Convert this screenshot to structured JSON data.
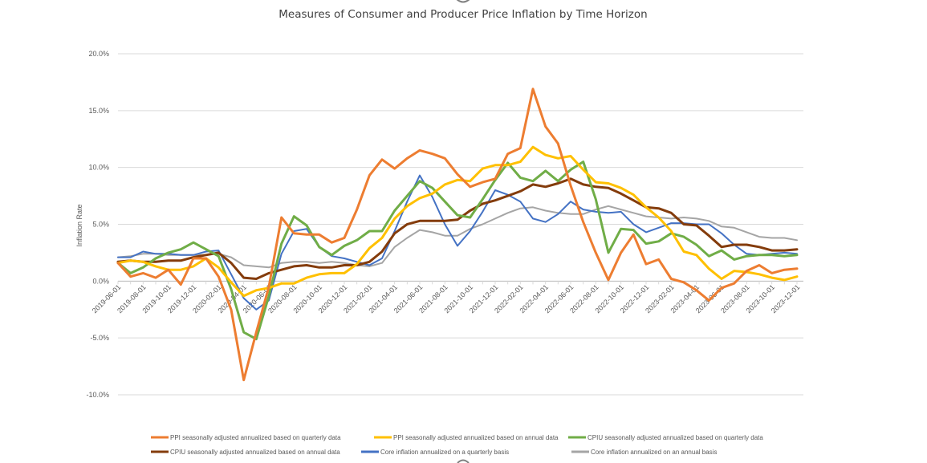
{
  "chart_data": {
    "type": "line",
    "title": "Measures of Consumer and Producer Price Inflation by Time Horizon",
    "xlabel": "",
    "ylabel": "Inflation Rate",
    "ylim": [
      -10,
      20
    ],
    "y_ticks": [
      20,
      15,
      10,
      5,
      0,
      -5,
      -10
    ],
    "y_tick_labels": [
      "20.0%",
      "15.0%",
      "10.0%",
      "5.0%",
      "0.0%",
      "-5.0%",
      "-10.0%"
    ],
    "grid": true,
    "legend_position": "bottom",
    "x": [
      "2019-06-01",
      "2019-07-01",
      "2019-08-01",
      "2019-09-01",
      "2019-10-01",
      "2019-11-01",
      "2019-12-01",
      "2020-01-01",
      "2020-02-01",
      "2020-03-01",
      "2020-04-01",
      "2020-05-01",
      "2020-06-01",
      "2020-07-01",
      "2020-08-01",
      "2020-09-01",
      "2020-10-01",
      "2020-11-01",
      "2020-12-01",
      "2021-01-01",
      "2021-02-01",
      "2021-03-01",
      "2021-04-01",
      "2021-05-01",
      "2021-06-01",
      "2021-07-01",
      "2021-08-01",
      "2021-09-01",
      "2021-10-01",
      "2021-11-01",
      "2021-12-01",
      "2022-01-01",
      "2022-02-01",
      "2022-03-01",
      "2022-04-01",
      "2022-05-01",
      "2022-06-01",
      "2022-07-01",
      "2022-08-01",
      "2022-09-01",
      "2022-10-01",
      "2022-11-01",
      "2022-12-01",
      "2023-01-01",
      "2023-02-01",
      "2023-03-01",
      "2023-04-01",
      "2023-05-01",
      "2023-06-01",
      "2023-07-01",
      "2023-08-01",
      "2023-09-01",
      "2023-10-01",
      "2023-11-01",
      "2023-12-01"
    ],
    "x_tick_labels": [
      "2019-06-01",
      "2019-08-01",
      "2019-10-01",
      "2019-12-01",
      "2020-02-01",
      "2020-04-01",
      "2020-06-01",
      "2020-08-01",
      "2020-10-01",
      "2020-12-01",
      "2021-02-01",
      "2021-04-01",
      "2021-06-01",
      "2021-08-01",
      "2021-10-01",
      "2021-12-01",
      "2022-02-01",
      "2022-04-01",
      "2022-06-01",
      "2022-08-01",
      "2022-10-01",
      "2022-12-01",
      "2023-02-01",
      "2023-04-01",
      "2023-06-01",
      "2023-08-01",
      "2023-10-01",
      "2023-12-01"
    ],
    "series": [
      {
        "name": "PPI seasonally adjusted annualized based on quarterly data",
        "color": "#ED7D31",
        "values": [
          1.6,
          0.4,
          0.7,
          0.3,
          1.0,
          -0.3,
          2.0,
          2.0,
          0.4,
          -2.5,
          -8.7,
          -4.5,
          -0.5,
          5.6,
          4.2,
          4.1,
          4.1,
          3.4,
          3.8,
          6.3,
          9.3,
          10.7,
          9.9,
          10.8,
          11.5,
          11.2,
          10.8,
          9.4,
          8.3,
          8.7,
          9.0,
          11.2,
          11.7,
          16.9,
          13.6,
          12.1,
          8.4,
          5.2,
          2.5,
          0.1,
          2.5,
          4.1,
          1.5,
          1.9,
          0.2,
          -0.1,
          -0.8,
          -1.7,
          -0.6,
          -0.2,
          0.9,
          1.4,
          0.7,
          1.0,
          1.1
        ]
      },
      {
        "name": "PPI seasonally adjusted annualized based on annual data",
        "color": "#FFC000",
        "values": [
          1.6,
          1.8,
          1.7,
          1.3,
          1.0,
          1.0,
          1.3,
          2.0,
          1.2,
          -0.1,
          -1.3,
          -0.8,
          -0.6,
          -0.2,
          -0.2,
          0.3,
          0.6,
          0.7,
          0.7,
          1.5,
          2.9,
          3.8,
          5.5,
          6.6,
          7.3,
          7.7,
          8.5,
          8.9,
          8.8,
          9.9,
          10.2,
          10.2,
          10.5,
          11.8,
          11.1,
          10.8,
          11.0,
          9.8,
          8.7,
          8.6,
          8.2,
          7.6,
          6.5,
          5.6,
          4.4,
          2.6,
          2.3,
          1.1,
          0.2,
          0.9,
          0.8,
          0.6,
          0.3,
          0.1,
          0.4
        ]
      },
      {
        "name": "CPIU seasonally adjusted annualized based on quarterly data",
        "color": "#70AD47",
        "values": [
          1.6,
          0.7,
          1.2,
          2.0,
          2.5,
          2.8,
          3.4,
          2.8,
          2.2,
          -0.7,
          -4.5,
          -5.1,
          -1.3,
          3.3,
          5.7,
          4.9,
          3.0,
          2.3,
          3.1,
          3.6,
          4.4,
          4.4,
          6.2,
          7.5,
          8.8,
          8.2,
          7.0,
          5.8,
          5.6,
          7.2,
          8.9,
          10.4,
          9.1,
          8.8,
          9.7,
          8.8,
          9.8,
          10.5,
          7.2,
          2.5,
          4.6,
          4.5,
          3.3,
          3.5,
          4.2,
          3.9,
          3.2,
          2.2,
          2.7,
          1.9,
          2.2,
          2.3,
          2.3,
          2.2,
          2.3
        ]
      },
      {
        "name": "CPIU seasonally adjusted annualized based on annual data",
        "color": "#843C0C",
        "values": [
          1.7,
          1.8,
          1.7,
          1.7,
          1.8,
          1.8,
          2.1,
          2.3,
          2.5,
          1.6,
          0.3,
          0.2,
          0.7,
          1.0,
          1.3,
          1.4,
          1.2,
          1.2,
          1.4,
          1.4,
          1.7,
          2.6,
          4.2,
          5.0,
          5.3,
          5.3,
          5.3,
          5.4,
          6.2,
          6.8,
          7.1,
          7.5,
          7.9,
          8.5,
          8.3,
          8.6,
          9.0,
          8.5,
          8.3,
          8.2,
          7.7,
          7.1,
          6.5,
          6.4,
          6.0,
          5.0,
          4.9,
          4.0,
          3.0,
          3.2,
          3.2,
          3.0,
          2.7,
          2.7,
          2.8
        ]
      },
      {
        "name": "Core inflation annualized on a quarterly basis",
        "color": "#4472C4",
        "values": [
          2.1,
          2.1,
          2.6,
          2.4,
          2.4,
          2.3,
          2.3,
          2.6,
          2.7,
          0.6,
          -1.5,
          -2.5,
          -1.7,
          2.4,
          4.4,
          4.6,
          3.0,
          2.2,
          2.0,
          1.7,
          1.4,
          2.0,
          4.4,
          7.0,
          9.3,
          7.4,
          5.0,
          3.1,
          4.4,
          6.1,
          8.0,
          7.6,
          7.0,
          5.5,
          5.2,
          5.9,
          7.0,
          6.3,
          6.1,
          6.0,
          6.1,
          5.0,
          4.3,
          4.7,
          5.1,
          5.1,
          5.0,
          5.0,
          4.2,
          3.2,
          2.4,
          2.3,
          2.4,
          2.5,
          2.4
        ]
      },
      {
        "name": "Core inflation annualized on an annual basis",
        "color": "#A5A5A5",
        "values": [
          2.1,
          2.2,
          2.4,
          2.4,
          2.3,
          2.3,
          2.3,
          2.3,
          2.4,
          2.1,
          1.4,
          1.3,
          1.2,
          1.6,
          1.7,
          1.7,
          1.6,
          1.7,
          1.6,
          1.4,
          1.3,
          1.6,
          3.0,
          3.8,
          4.5,
          4.3,
          4.0,
          4.0,
          4.6,
          5.0,
          5.5,
          6.0,
          6.4,
          6.5,
          6.2,
          6.0,
          5.9,
          5.9,
          6.3,
          6.6,
          6.3,
          6.0,
          5.7,
          5.6,
          5.5,
          5.6,
          5.5,
          5.3,
          4.8,
          4.7,
          4.3,
          3.9,
          3.8,
          3.8,
          3.6
        ]
      }
    ]
  },
  "legend": [
    {
      "label": "PPI seasonally adjusted annualized based on quarterly data"
    },
    {
      "label": "PPI seasonally adjusted annualized based on annual data"
    },
    {
      "label": "CPIU seasonally adjusted annualized based on quarterly data"
    },
    {
      "label": "CPIU seasonally adjusted annualized based on annual data"
    },
    {
      "label": "Core inflation annualized on a quarterly basis"
    },
    {
      "label": "Core inflation annualized on an annual basis"
    }
  ]
}
